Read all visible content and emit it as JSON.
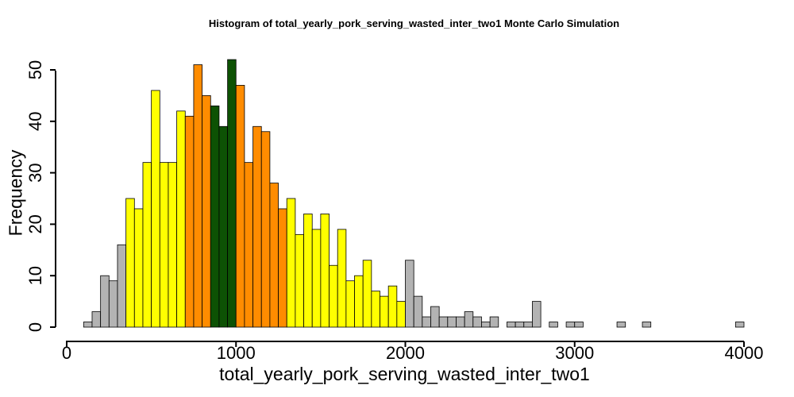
{
  "chart_data": {
    "type": "bar",
    "title": "Histogram of  total_yearly_pork_serving_wasted_inter_two1  Monte Carlo Simulation",
    "xlabel": "total_yearly_pork_serving_wasted_inter_two1",
    "ylabel": "Frequency",
    "xlim": [
      0,
      4000
    ],
    "ylim": [
      0,
      52
    ],
    "x_ticks": [
      "0",
      "1000",
      "2000",
      "3000",
      "4000"
    ],
    "y_ticks": [
      "0",
      "10",
      "20",
      "30",
      "40",
      "50"
    ],
    "bin_width": 50,
    "bin_start": 100,
    "counts": [
      1,
      3,
      10,
      9,
      16,
      25,
      23,
      32,
      46,
      32,
      32,
      42,
      41,
      51,
      45,
      43,
      39,
      52,
      47,
      32,
      39,
      38,
      28,
      23,
      25,
      18,
      22,
      19,
      22,
      12,
      19,
      9,
      10,
      13,
      7,
      6,
      8,
      5,
      13,
      6,
      2,
      4,
      2,
      2,
      2,
      3,
      2,
      1,
      2,
      0,
      1,
      1,
      1,
      5,
      0,
      1,
      0,
      1,
      1,
      0,
      0,
      0,
      0,
      1,
      0,
      0,
      1,
      0,
      0,
      0,
      0,
      0,
      0,
      0,
      0,
      0,
      0,
      1
    ],
    "band_colors": {
      "outer": "#b3b3b3",
      "middle": "#ffff00",
      "inner": "#ff8c00",
      "center": "#0d5204"
    },
    "bands": [
      {
        "from": 100,
        "to": 350,
        "color": "outer"
      },
      {
        "from": 350,
        "to": 700,
        "color": "middle"
      },
      {
        "from": 700,
        "to": 850,
        "color": "inner"
      },
      {
        "from": 850,
        "to": 1000,
        "color": "center"
      },
      {
        "from": 1000,
        "to": 1300,
        "color": "inner"
      },
      {
        "from": 1300,
        "to": 2000,
        "color": "middle"
      },
      {
        "from": 2000,
        "to": 4000,
        "color": "outer"
      }
    ],
    "grid": false,
    "legend": "none"
  }
}
